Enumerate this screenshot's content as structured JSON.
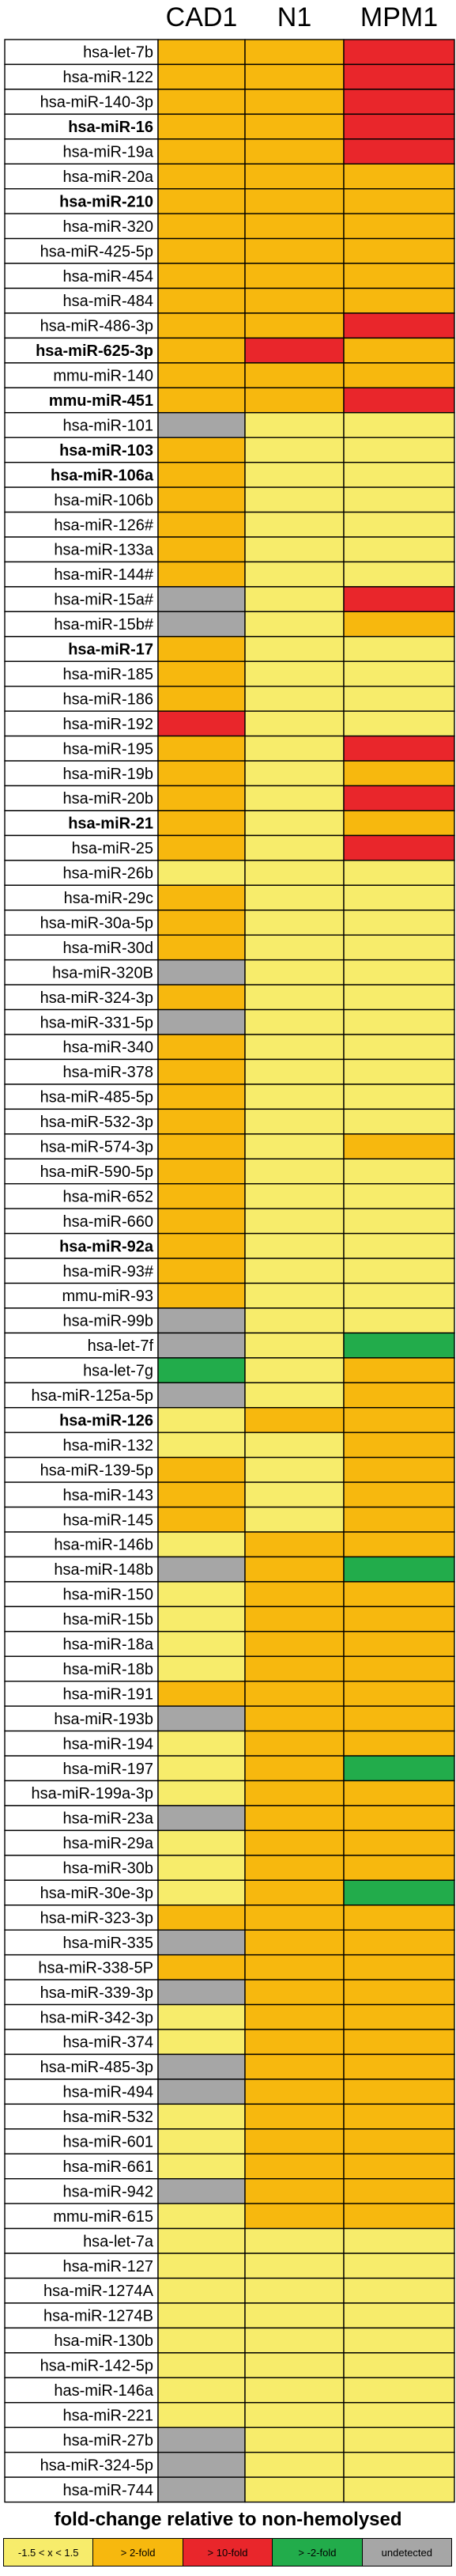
{
  "colors": {
    "yellow": "#f7ec6b",
    "orange": "#f7b80e",
    "red": "#e9262b",
    "green": "#22ac4b",
    "gray": "#a6a6a6"
  },
  "chart_data": {
    "type": "heatmap",
    "columns": [
      "CAD1",
      "N1",
      "MPM1"
    ],
    "legend_title": "fold-change relative to non-hemolysed",
    "categories": [
      {
        "key": "Y",
        "label": "-1.5 < x < 1.5",
        "color": "#f7ec6b"
      },
      {
        "key": "O",
        "label": "> 2-fold",
        "color": "#f7b80e"
      },
      {
        "key": "R",
        "label": "> 10-fold",
        "color": "#e9262b"
      },
      {
        "key": "G",
        "label": "> -2-fold",
        "color": "#22ac4b"
      },
      {
        "key": "U",
        "label": "undetected",
        "color": "#a6a6a6"
      }
    ],
    "rows": [
      {
        "label": "hsa-let-7b",
        "bold": false,
        "values": [
          "O",
          "O",
          "R"
        ]
      },
      {
        "label": "hsa-miR-122",
        "bold": false,
        "values": [
          "O",
          "O",
          "R"
        ]
      },
      {
        "label": "hsa-miR-140-3p",
        "bold": false,
        "values": [
          "O",
          "O",
          "R"
        ]
      },
      {
        "label": "hsa-miR-16",
        "bold": true,
        "values": [
          "O",
          "O",
          "R"
        ]
      },
      {
        "label": "hsa-miR-19a",
        "bold": false,
        "values": [
          "O",
          "O",
          "R"
        ]
      },
      {
        "label": "hsa-miR-20a",
        "bold": false,
        "values": [
          "O",
          "O",
          "O"
        ]
      },
      {
        "label": "hsa-miR-210",
        "bold": true,
        "values": [
          "O",
          "O",
          "O"
        ]
      },
      {
        "label": "hsa-miR-320",
        "bold": false,
        "values": [
          "O",
          "O",
          "O"
        ]
      },
      {
        "label": "hsa-miR-425-5p",
        "bold": false,
        "values": [
          "O",
          "O",
          "O"
        ]
      },
      {
        "label": "hsa-miR-454",
        "bold": false,
        "values": [
          "O",
          "O",
          "O"
        ]
      },
      {
        "label": "hsa-miR-484",
        "bold": false,
        "values": [
          "O",
          "O",
          "O"
        ]
      },
      {
        "label": "hsa-miR-486-3p",
        "bold": false,
        "values": [
          "O",
          "O",
          "R"
        ]
      },
      {
        "label": "hsa-miR-625-3p",
        "bold": true,
        "values": [
          "O",
          "R",
          "O"
        ]
      },
      {
        "label": "mmu-miR-140",
        "bold": false,
        "values": [
          "O",
          "O",
          "O"
        ]
      },
      {
        "label": "mmu-miR-451",
        "bold": true,
        "values": [
          "O",
          "O",
          "R"
        ]
      },
      {
        "label": "hsa-miR-101",
        "bold": false,
        "values": [
          "U",
          "Y",
          "Y"
        ]
      },
      {
        "label": "hsa-miR-103",
        "bold": true,
        "values": [
          "O",
          "Y",
          "Y"
        ]
      },
      {
        "label": "hsa-miR-106a",
        "bold": true,
        "values": [
          "O",
          "Y",
          "Y"
        ]
      },
      {
        "label": "hsa-miR-106b",
        "bold": false,
        "values": [
          "O",
          "Y",
          "Y"
        ]
      },
      {
        "label": "hsa-miR-126#",
        "bold": false,
        "values": [
          "O",
          "Y",
          "Y"
        ]
      },
      {
        "label": "hsa-miR-133a",
        "bold": false,
        "values": [
          "O",
          "Y",
          "Y"
        ]
      },
      {
        "label": "hsa-miR-144#",
        "bold": false,
        "values": [
          "O",
          "Y",
          "Y"
        ]
      },
      {
        "label": "hsa-miR-15a#",
        "bold": false,
        "values": [
          "U",
          "Y",
          "R"
        ]
      },
      {
        "label": "hsa-miR-15b#",
        "bold": false,
        "values": [
          "U",
          "Y",
          "O"
        ]
      },
      {
        "label": "hsa-miR-17",
        "bold": true,
        "values": [
          "O",
          "Y",
          "Y"
        ]
      },
      {
        "label": "hsa-miR-185",
        "bold": false,
        "values": [
          "O",
          "Y",
          "Y"
        ]
      },
      {
        "label": "hsa-miR-186",
        "bold": false,
        "values": [
          "O",
          "Y",
          "Y"
        ]
      },
      {
        "label": "hsa-miR-192",
        "bold": false,
        "values": [
          "R",
          "Y",
          "Y"
        ]
      },
      {
        "label": "hsa-miR-195",
        "bold": false,
        "values": [
          "O",
          "Y",
          "R"
        ]
      },
      {
        "label": "hsa-miR-19b",
        "bold": false,
        "values": [
          "O",
          "Y",
          "O"
        ]
      },
      {
        "label": "hsa-miR-20b",
        "bold": false,
        "values": [
          "O",
          "Y",
          "R"
        ]
      },
      {
        "label": "hsa-miR-21",
        "bold": true,
        "values": [
          "O",
          "Y",
          "O"
        ]
      },
      {
        "label": "hsa-miR-25",
        "bold": false,
        "values": [
          "O",
          "Y",
          "R"
        ]
      },
      {
        "label": "hsa-miR-26b",
        "bold": false,
        "values": [
          "Y",
          "Y",
          "Y"
        ]
      },
      {
        "label": "hsa-miR-29c",
        "bold": false,
        "values": [
          "O",
          "Y",
          "Y"
        ]
      },
      {
        "label": "hsa-miR-30a-5p",
        "bold": false,
        "values": [
          "O",
          "Y",
          "Y"
        ]
      },
      {
        "label": "hsa-miR-30d",
        "bold": false,
        "values": [
          "O",
          "Y",
          "Y"
        ]
      },
      {
        "label": "hsa-miR-320B",
        "bold": false,
        "values": [
          "U",
          "Y",
          "Y"
        ]
      },
      {
        "label": "hsa-miR-324-3p",
        "bold": false,
        "values": [
          "O",
          "Y",
          "Y"
        ]
      },
      {
        "label": "hsa-miR-331-5p",
        "bold": false,
        "values": [
          "U",
          "Y",
          "Y"
        ]
      },
      {
        "label": "hsa-miR-340",
        "bold": false,
        "values": [
          "O",
          "Y",
          "Y"
        ]
      },
      {
        "label": "hsa-miR-378",
        "bold": false,
        "values": [
          "O",
          "Y",
          "Y"
        ]
      },
      {
        "label": "hsa-miR-485-5p",
        "bold": false,
        "values": [
          "O",
          "Y",
          "Y"
        ]
      },
      {
        "label": "hsa-miR-532-3p",
        "bold": false,
        "values": [
          "O",
          "Y",
          "Y"
        ]
      },
      {
        "label": "hsa-miR-574-3p",
        "bold": false,
        "values": [
          "O",
          "Y",
          "O"
        ]
      },
      {
        "label": "hsa-miR-590-5p",
        "bold": false,
        "values": [
          "O",
          "Y",
          "Y"
        ]
      },
      {
        "label": "hsa-miR-652",
        "bold": false,
        "values": [
          "O",
          "Y",
          "Y"
        ]
      },
      {
        "label": "hsa-miR-660",
        "bold": false,
        "values": [
          "O",
          "Y",
          "Y"
        ]
      },
      {
        "label": "hsa-miR-92a",
        "bold": true,
        "values": [
          "O",
          "Y",
          "Y"
        ]
      },
      {
        "label": "hsa-miR-93#",
        "bold": false,
        "values": [
          "O",
          "Y",
          "Y"
        ]
      },
      {
        "label": "mmu-miR-93",
        "bold": false,
        "values": [
          "O",
          "Y",
          "Y"
        ]
      },
      {
        "label": "hsa-miR-99b",
        "bold": false,
        "values": [
          "U",
          "Y",
          "Y"
        ]
      },
      {
        "label": "hsa-let-7f",
        "bold": false,
        "values": [
          "U",
          "Y",
          "G"
        ]
      },
      {
        "label": "hsa-let-7g",
        "bold": false,
        "values": [
          "G",
          "Y",
          "O"
        ]
      },
      {
        "label": "hsa-miR-125a-5p",
        "bold": false,
        "values": [
          "U",
          "Y",
          "O"
        ]
      },
      {
        "label": "hsa-miR-126",
        "bold": true,
        "values": [
          "Y",
          "O",
          "O"
        ]
      },
      {
        "label": "hsa-miR-132",
        "bold": false,
        "values": [
          "Y",
          "Y",
          "O"
        ]
      },
      {
        "label": "hsa-miR-139-5p",
        "bold": false,
        "values": [
          "O",
          "Y",
          "O"
        ]
      },
      {
        "label": "hsa-miR-143",
        "bold": false,
        "values": [
          "O",
          "Y",
          "O"
        ]
      },
      {
        "label": "hsa-miR-145",
        "bold": false,
        "values": [
          "O",
          "Y",
          "O"
        ]
      },
      {
        "label": "hsa-miR-146b",
        "bold": false,
        "values": [
          "Y",
          "O",
          "O"
        ]
      },
      {
        "label": "hsa-miR-148b",
        "bold": false,
        "values": [
          "U",
          "O",
          "G"
        ]
      },
      {
        "label": "hsa-miR-150",
        "bold": false,
        "values": [
          "Y",
          "O",
          "O"
        ]
      },
      {
        "label": "hsa-miR-15b",
        "bold": false,
        "values": [
          "Y",
          "O",
          "O"
        ]
      },
      {
        "label": "hsa-miR-18a",
        "bold": false,
        "values": [
          "Y",
          "O",
          "O"
        ]
      },
      {
        "label": "hsa-miR-18b",
        "bold": false,
        "values": [
          "Y",
          "O",
          "O"
        ]
      },
      {
        "label": "hsa-miR-191",
        "bold": false,
        "values": [
          "O",
          "O",
          "O"
        ]
      },
      {
        "label": "hsa-miR-193b",
        "bold": false,
        "values": [
          "U",
          "O",
          "O"
        ]
      },
      {
        "label": "hsa-miR-194",
        "bold": false,
        "values": [
          "Y",
          "O",
          "O"
        ]
      },
      {
        "label": "hsa-miR-197",
        "bold": false,
        "values": [
          "Y",
          "O",
          "G"
        ]
      },
      {
        "label": "hsa-miR-199a-3p",
        "bold": false,
        "values": [
          "Y",
          "O",
          "O"
        ]
      },
      {
        "label": "hsa-miR-23a",
        "bold": false,
        "values": [
          "U",
          "O",
          "O"
        ]
      },
      {
        "label": "hsa-miR-29a",
        "bold": false,
        "values": [
          "Y",
          "O",
          "O"
        ]
      },
      {
        "label": "hsa-miR-30b",
        "bold": false,
        "values": [
          "Y",
          "O",
          "O"
        ]
      },
      {
        "label": "hsa-miR-30e-3p",
        "bold": false,
        "values": [
          "Y",
          "O",
          "G"
        ]
      },
      {
        "label": "hsa-miR-323-3p",
        "bold": false,
        "values": [
          "O",
          "O",
          "O"
        ]
      },
      {
        "label": "hsa-miR-335",
        "bold": false,
        "values": [
          "U",
          "O",
          "O"
        ]
      },
      {
        "label": "hsa-miR-338-5P",
        "bold": false,
        "values": [
          "O",
          "O",
          "O"
        ]
      },
      {
        "label": "hsa-miR-339-3p",
        "bold": false,
        "values": [
          "U",
          "O",
          "O"
        ]
      },
      {
        "label": "hsa-miR-342-3p",
        "bold": false,
        "values": [
          "Y",
          "O",
          "O"
        ]
      },
      {
        "label": "hsa-miR-374",
        "bold": false,
        "values": [
          "Y",
          "O",
          "O"
        ]
      },
      {
        "label": "hsa-miR-485-3p",
        "bold": false,
        "values": [
          "U",
          "O",
          "O"
        ]
      },
      {
        "label": "hsa-miR-494",
        "bold": false,
        "values": [
          "U",
          "O",
          "O"
        ]
      },
      {
        "label": "hsa-miR-532",
        "bold": false,
        "values": [
          "Y",
          "O",
          "O"
        ]
      },
      {
        "label": "hsa-miR-601",
        "bold": false,
        "values": [
          "Y",
          "O",
          "O"
        ]
      },
      {
        "label": "hsa-miR-661",
        "bold": false,
        "values": [
          "Y",
          "O",
          "O"
        ]
      },
      {
        "label": "hsa-miR-942",
        "bold": false,
        "values": [
          "U",
          "O",
          "O"
        ]
      },
      {
        "label": "mmu-miR-615",
        "bold": false,
        "values": [
          "Y",
          "O",
          "O"
        ]
      },
      {
        "label": "hsa-let-7a",
        "bold": false,
        "values": [
          "Y",
          "Y",
          "Y"
        ]
      },
      {
        "label": "hsa-miR-127",
        "bold": false,
        "values": [
          "Y",
          "Y",
          "Y"
        ]
      },
      {
        "label": "hsa-miR-1274A",
        "bold": false,
        "values": [
          "Y",
          "Y",
          "Y"
        ]
      },
      {
        "label": "hsa-miR-1274B",
        "bold": false,
        "values": [
          "Y",
          "Y",
          "Y"
        ]
      },
      {
        "label": "hsa-miR-130b",
        "bold": false,
        "values": [
          "Y",
          "Y",
          "Y"
        ]
      },
      {
        "label": "hsa-miR-142-5p",
        "bold": false,
        "values": [
          "Y",
          "Y",
          "Y"
        ]
      },
      {
        "label": "has-miR-146a",
        "bold": false,
        "values": [
          "Y",
          "Y",
          "Y"
        ]
      },
      {
        "label": "hsa-miR-221",
        "bold": false,
        "values": [
          "Y",
          "Y",
          "Y"
        ]
      },
      {
        "label": "hsa-miR-27b",
        "bold": false,
        "values": [
          "U",
          "Y",
          "Y"
        ]
      },
      {
        "label": "hsa-miR-324-5p",
        "bold": false,
        "values": [
          "U",
          "Y",
          "Y"
        ]
      },
      {
        "label": "hsa-miR-744",
        "bold": false,
        "values": [
          "U",
          "Y",
          "Y"
        ]
      }
    ]
  }
}
